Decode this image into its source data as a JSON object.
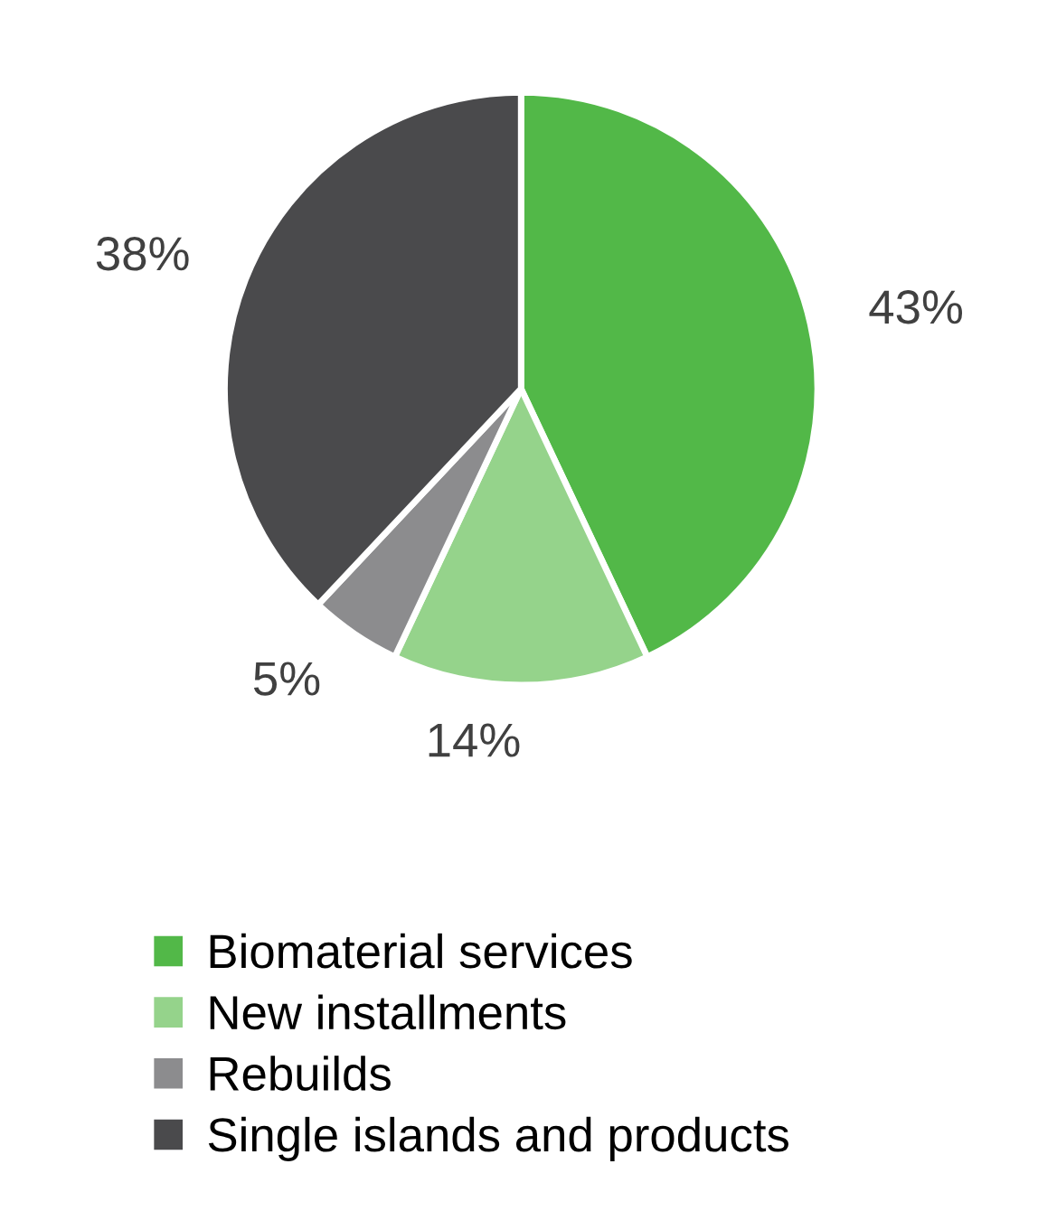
{
  "chart_data": {
    "type": "pie",
    "categories": [
      "Biomaterial services",
      "New installments",
      "Rebuilds",
      "Single islands and products"
    ],
    "values": [
      43,
      14,
      5,
      38
    ],
    "value_labels": [
      "43%",
      "14%",
      "5%",
      "38%"
    ],
    "colors": [
      "#52b848",
      "#95d38b",
      "#8c8c8e",
      "#4a4a4c"
    ],
    "legend": "bottom"
  }
}
